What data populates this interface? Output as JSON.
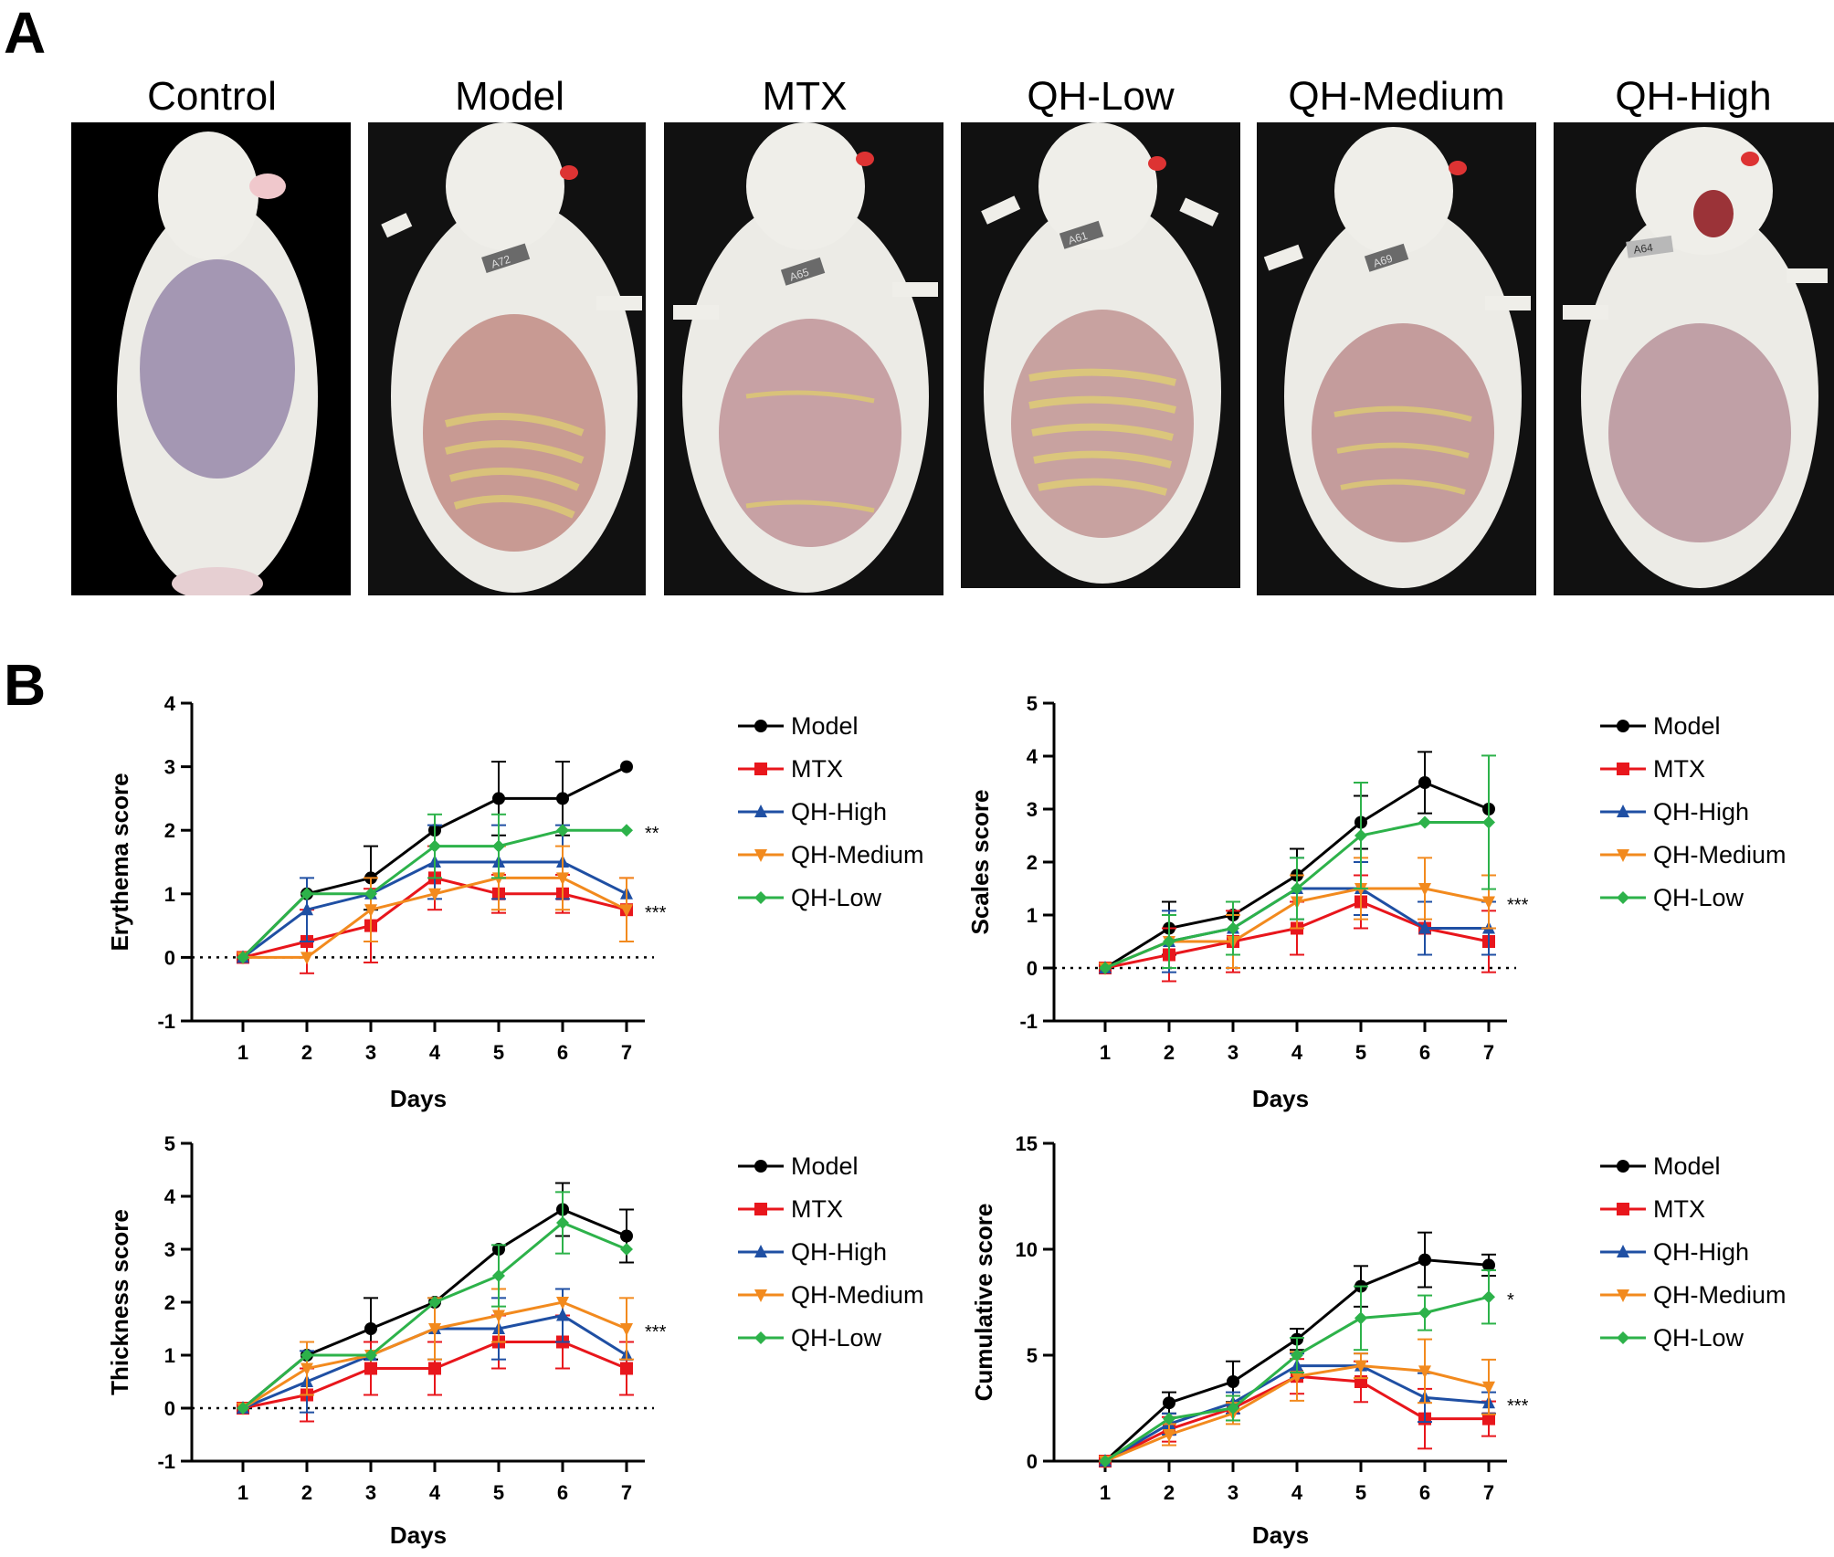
{
  "panels": {
    "a": "A",
    "b": "B"
  },
  "photos": [
    {
      "label": "Control",
      "lesion": "none",
      "tag": ""
    },
    {
      "label": "Model",
      "lesion": "severe",
      "tag": "A72"
    },
    {
      "label": "MTX",
      "lesion": "mild",
      "tag": "A65"
    },
    {
      "label": "QH-Low",
      "lesion": "severe",
      "tag": "A61"
    },
    {
      "label": "QH-Medium",
      "lesion": "moderate",
      "tag": "A69"
    },
    {
      "label": "QH-High",
      "lesion": "mild",
      "tag": "A64"
    }
  ],
  "colors": {
    "Model": "#000000",
    "MTX": "#e8161c",
    "QH-High": "#1f4fa3",
    "QH-Medium": "#f28a1e",
    "QH-Low": "#2db24a"
  },
  "chart_data": [
    {
      "type": "line",
      "title": "",
      "xlabel": "Days",
      "ylabel": "Erythema score",
      "x": [
        1,
        2,
        3,
        4,
        5,
        6,
        7
      ],
      "ylim": [
        -1,
        4
      ],
      "yticks": [
        -1,
        0,
        1,
        2,
        3,
        4
      ],
      "baseline": 0,
      "series": [
        {
          "name": "Model",
          "marker": "circle",
          "values": [
            0,
            1,
            1.25,
            2,
            2.5,
            2.5,
            3
          ],
          "errors": [
            0,
            0,
            0.5,
            0,
            0.58,
            0.58,
            0
          ]
        },
        {
          "name": "MTX",
          "marker": "square",
          "values": [
            0,
            0.25,
            0.5,
            1.25,
            1,
            1,
            0.75
          ],
          "errors": [
            0,
            0.5,
            0.58,
            0.5,
            0.3,
            0.3,
            0.5
          ]
        },
        {
          "name": "QH-High",
          "marker": "triangle-up",
          "values": [
            0,
            0.75,
            1,
            1.5,
            1.5,
            1.5,
            1
          ],
          "errors": [
            0,
            0.5,
            0,
            0.58,
            0.58,
            0.58,
            0
          ]
        },
        {
          "name": "QH-Medium",
          "marker": "triangle-down",
          "values": [
            0,
            0,
            0.75,
            1,
            1.25,
            1.25,
            0.75
          ],
          "errors": [
            0,
            0,
            0.5,
            0,
            0.5,
            0.5,
            0.5
          ]
        },
        {
          "name": "QH-Low",
          "marker": "diamond",
          "values": [
            0,
            1,
            1,
            1.75,
            1.75,
            2,
            2
          ],
          "errors": [
            0,
            0,
            0,
            0.5,
            0.5,
            0,
            0
          ]
        }
      ],
      "annotations": [
        {
          "text": "**",
          "series": "QH-Low"
        },
        {
          "text": "***",
          "series": "MTX"
        }
      ],
      "legend": [
        "Model",
        "MTX",
        "QH-High",
        "QH-Medium",
        "QH-Low"
      ]
    },
    {
      "type": "line",
      "title": "",
      "xlabel": "Days",
      "ylabel": "Scales score",
      "x": [
        1,
        2,
        3,
        4,
        5,
        6,
        7
      ],
      "ylim": [
        -1,
        5
      ],
      "yticks": [
        -1,
        0,
        1,
        2,
        3,
        4,
        5
      ],
      "baseline": 0,
      "series": [
        {
          "name": "Model",
          "marker": "circle",
          "values": [
            0,
            0.75,
            1,
            1.75,
            2.75,
            3.5,
            3
          ],
          "errors": [
            0,
            0.5,
            0,
            0.5,
            0.5,
            0.58,
            0
          ]
        },
        {
          "name": "MTX",
          "marker": "square",
          "values": [
            0,
            0.25,
            0.5,
            0.75,
            1.25,
            0.75,
            0.5
          ],
          "errors": [
            0,
            0.5,
            0.58,
            0.5,
            0.5,
            0.5,
            0.58
          ]
        },
        {
          "name": "QH-High",
          "marker": "triangle-up",
          "values": [
            0,
            0.5,
            0.75,
            1.5,
            1.5,
            0.75,
            0.75
          ],
          "errors": [
            0,
            0.58,
            0.5,
            0.58,
            0.5,
            0.5,
            0.5
          ]
        },
        {
          "name": "QH-Medium",
          "marker": "triangle-down",
          "values": [
            0,
            0.5,
            0.5,
            1.25,
            1.5,
            1.5,
            1.25
          ],
          "errors": [
            0,
            0.5,
            0.5,
            0.5,
            0.58,
            0.58,
            0.5
          ]
        },
        {
          "name": "QH-Low",
          "marker": "diamond",
          "values": [
            0,
            0.5,
            0.75,
            1.5,
            2.5,
            2.75,
            2.75
          ],
          "errors": [
            0,
            0.5,
            0.5,
            0.58,
            1,
            0,
            1.26
          ]
        }
      ],
      "annotations": [
        {
          "text": "***",
          "series": "QH-Medium"
        }
      ],
      "legend": [
        "Model",
        "MTX",
        "QH-High",
        "QH-Medium",
        "QH-Low"
      ]
    },
    {
      "type": "line",
      "title": "",
      "xlabel": "Days",
      "ylabel": "Thickness score",
      "x": [
        1,
        2,
        3,
        4,
        5,
        6,
        7
      ],
      "ylim": [
        -1,
        5
      ],
      "yticks": [
        -1,
        0,
        1,
        2,
        3,
        4,
        5
      ],
      "baseline": 0,
      "series": [
        {
          "name": "Model",
          "marker": "circle",
          "values": [
            0,
            1,
            1.5,
            2,
            3,
            3.75,
            3.25
          ],
          "errors": [
            0,
            0,
            0.58,
            0,
            0,
            0.5,
            0.5
          ]
        },
        {
          "name": "MTX",
          "marker": "square",
          "values": [
            0,
            0.25,
            0.75,
            0.75,
            1.25,
            1.25,
            0.75
          ],
          "errors": [
            0,
            0.5,
            0.5,
            0.5,
            0.5,
            0.5,
            0.5
          ]
        },
        {
          "name": "QH-High",
          "marker": "triangle-up",
          "values": [
            0,
            0.5,
            1,
            1.5,
            1.5,
            1.75,
            1
          ],
          "errors": [
            0,
            0.58,
            0,
            0.58,
            0.58,
            0.5,
            0
          ]
        },
        {
          "name": "QH-Medium",
          "marker": "triangle-down",
          "values": [
            0,
            0.75,
            1,
            1.5,
            1.75,
            2,
            1.5
          ],
          "errors": [
            0,
            0.5,
            0,
            0.58,
            0.5,
            0,
            0.58
          ]
        },
        {
          "name": "QH-Low",
          "marker": "diamond",
          "values": [
            0,
            1,
            1,
            2,
            2.5,
            3.5,
            3
          ],
          "errors": [
            0,
            0,
            0,
            0,
            0.58,
            0.58,
            0
          ]
        }
      ],
      "annotations": [
        {
          "text": "***",
          "series": "QH-Medium"
        }
      ],
      "legend": [
        "Model",
        "MTX",
        "QH-High",
        "QH-Medium",
        "QH-Low"
      ]
    },
    {
      "type": "line",
      "title": "",
      "xlabel": "Days",
      "ylabel": "Cumulative score",
      "x": [
        1,
        2,
        3,
        4,
        5,
        6,
        7
      ],
      "ylim": [
        0,
        15
      ],
      "yticks": [
        0,
        5,
        10,
        15
      ],
      "baseline": null,
      "series": [
        {
          "name": "Model",
          "marker": "circle",
          "values": [
            0,
            2.75,
            3.75,
            5.75,
            8.25,
            9.5,
            9.25
          ],
          "errors": [
            0,
            0.5,
            0.96,
            0.5,
            0.96,
            1.29,
            0.5
          ]
        },
        {
          "name": "MTX",
          "marker": "square",
          "values": [
            0,
            1.5,
            2.5,
            4,
            3.75,
            2,
            2
          ],
          "errors": [
            0,
            0.58,
            0.58,
            0.82,
            0.96,
            1.41,
            0.82
          ]
        },
        {
          "name": "QH-High",
          "marker": "triangle-up",
          "values": [
            0,
            1.75,
            2.75,
            4.5,
            4.5,
            3,
            2.75
          ],
          "errors": [
            0,
            0.5,
            0.5,
            0.58,
            0.58,
            1.15,
            0.5
          ]
        },
        {
          "name": "QH-Medium",
          "marker": "triangle-down",
          "values": [
            0,
            1.25,
            2.25,
            4,
            4.5,
            4.25,
            3.5
          ],
          "errors": [
            0,
            0.5,
            0.5,
            1.15,
            0.58,
            1.5,
            1.29
          ]
        },
        {
          "name": "QH-Low",
          "marker": "diamond",
          "values": [
            0,
            2,
            2.5,
            5,
            6.75,
            7,
            7.75
          ],
          "errors": [
            0,
            0,
            0.58,
            0.82,
            1.5,
            0.82,
            1.26
          ]
        }
      ],
      "annotations": [
        {
          "text": "*",
          "series": "QH-Low"
        },
        {
          "text": "***",
          "series": "QH-High"
        }
      ],
      "legend": [
        "Model",
        "MTX",
        "QH-High",
        "QH-Medium",
        "QH-Low"
      ]
    }
  ]
}
